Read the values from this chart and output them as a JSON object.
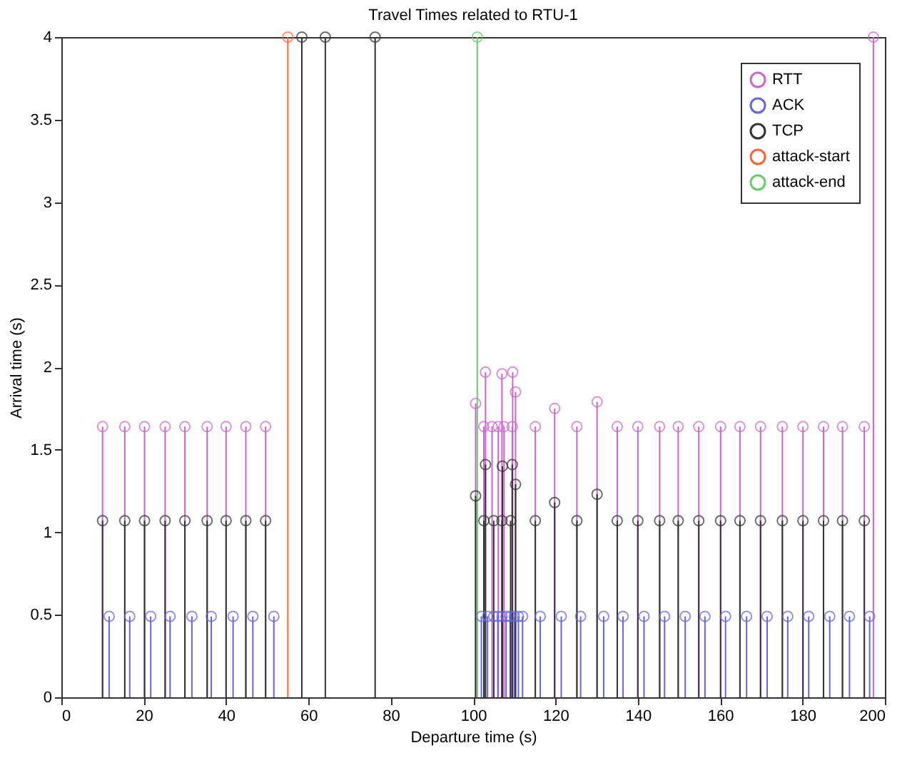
{
  "chart_data": {
    "type": "lollipop",
    "title": "Travel Times related to RTU-1",
    "xlabel": "Departure time (s)",
    "ylabel": "Arrival time (s)",
    "xlim": [
      0,
      200
    ],
    "xticks": [
      0,
      20,
      40,
      60,
      80,
      100,
      120,
      140,
      160,
      180,
      200
    ],
    "ylim": [
      0,
      4
    ],
    "yticks": [
      0,
      0.5,
      1,
      1.5,
      2,
      2.5,
      3,
      3.5,
      4
    ],
    "grid": false,
    "legend": "top right",
    "marker": "circle",
    "series": [
      {
        "name": "RTT",
        "color": "#cc66cc",
        "x": [
          10,
          15.4,
          20.2,
          25.2,
          30,
          35.4,
          40,
          44.8,
          49.6,
          100.6,
          102.6,
          103,
          104.6,
          106.1,
          107,
          107.5,
          109.5,
          109.6,
          110.3,
          115.1,
          119.8,
          125.2,
          130.1,
          135,
          140,
          145.3,
          149.8,
          154.8,
          160.1,
          164.8,
          169.8,
          175.1,
          180.1,
          185.1,
          189.7,
          195,
          197.2
        ],
        "values": [
          1.64,
          1.64,
          1.64,
          1.64,
          1.64,
          1.64,
          1.64,
          1.64,
          1.64,
          1.78,
          1.64,
          1.97,
          1.64,
          1.64,
          1.96,
          1.64,
          1.64,
          1.97,
          1.85,
          1.64,
          1.75,
          1.64,
          1.79,
          1.64,
          1.64,
          1.64,
          1.64,
          1.64,
          1.64,
          1.64,
          1.64,
          1.64,
          1.64,
          1.64,
          1.64,
          1.64,
          4
        ]
      },
      {
        "name": "ACK",
        "color": "#6666dd",
        "x": [
          11.6,
          16.6,
          21.7,
          26.4,
          31.7,
          36.4,
          41.7,
          46.5,
          51.6,
          102,
          103.5,
          105,
          106,
          107,
          108,
          109,
          110,
          111,
          112,
          116.3,
          121.4,
          126.1,
          131.7,
          136.4,
          141.5,
          146.5,
          151.5,
          156.3,
          161.3,
          166.4,
          171.4,
          176.4,
          181.5,
          186.6,
          191.4,
          196.3
        ],
        "values": [
          0.49,
          0.49,
          0.49,
          0.49,
          0.49,
          0.49,
          0.49,
          0.49,
          0.49,
          0.49,
          0.49,
          0.49,
          0.49,
          0.49,
          0.49,
          0.49,
          0.49,
          0.49,
          0.49,
          0.49,
          0.49,
          0.49,
          0.49,
          0.49,
          0.49,
          0.49,
          0.49,
          0.49,
          0.49,
          0.49,
          0.49,
          0.49,
          0.49,
          0.49,
          0.49,
          0.49
        ]
      },
      {
        "name": "TCP",
        "color": "#333333",
        "x": [
          10,
          15.4,
          20.2,
          25.2,
          30,
          35.4,
          40,
          44.8,
          49.6,
          58.4,
          64.1,
          76.2,
          100.6,
          102.6,
          103,
          105,
          107,
          107.1,
          109.1,
          109.5,
          110.3,
          115.1,
          119.8,
          125.2,
          130.1,
          135,
          140,
          145.3,
          149.8,
          154.8,
          160.1,
          164.8,
          169.8,
          175.1,
          180.1,
          185.1,
          189.7,
          195
        ],
        "values": [
          1.07,
          1.07,
          1.07,
          1.07,
          1.07,
          1.07,
          1.07,
          1.07,
          1.07,
          4,
          4,
          4,
          1.22,
          1.07,
          1.41,
          1.07,
          1.07,
          1.4,
          1.07,
          1.41,
          1.29,
          1.07,
          1.18,
          1.07,
          1.23,
          1.07,
          1.07,
          1.07,
          1.07,
          1.07,
          1.07,
          1.07,
          1.07,
          1.07,
          1.07,
          1.07,
          1.07,
          1.07
        ]
      },
      {
        "name": "attack-start",
        "color": "#ff6633",
        "x": [
          55
        ],
        "values": [
          4
        ]
      },
      {
        "name": "attack-end",
        "color": "#66cc66",
        "x": [
          101
        ],
        "values": [
          4
        ]
      }
    ]
  }
}
